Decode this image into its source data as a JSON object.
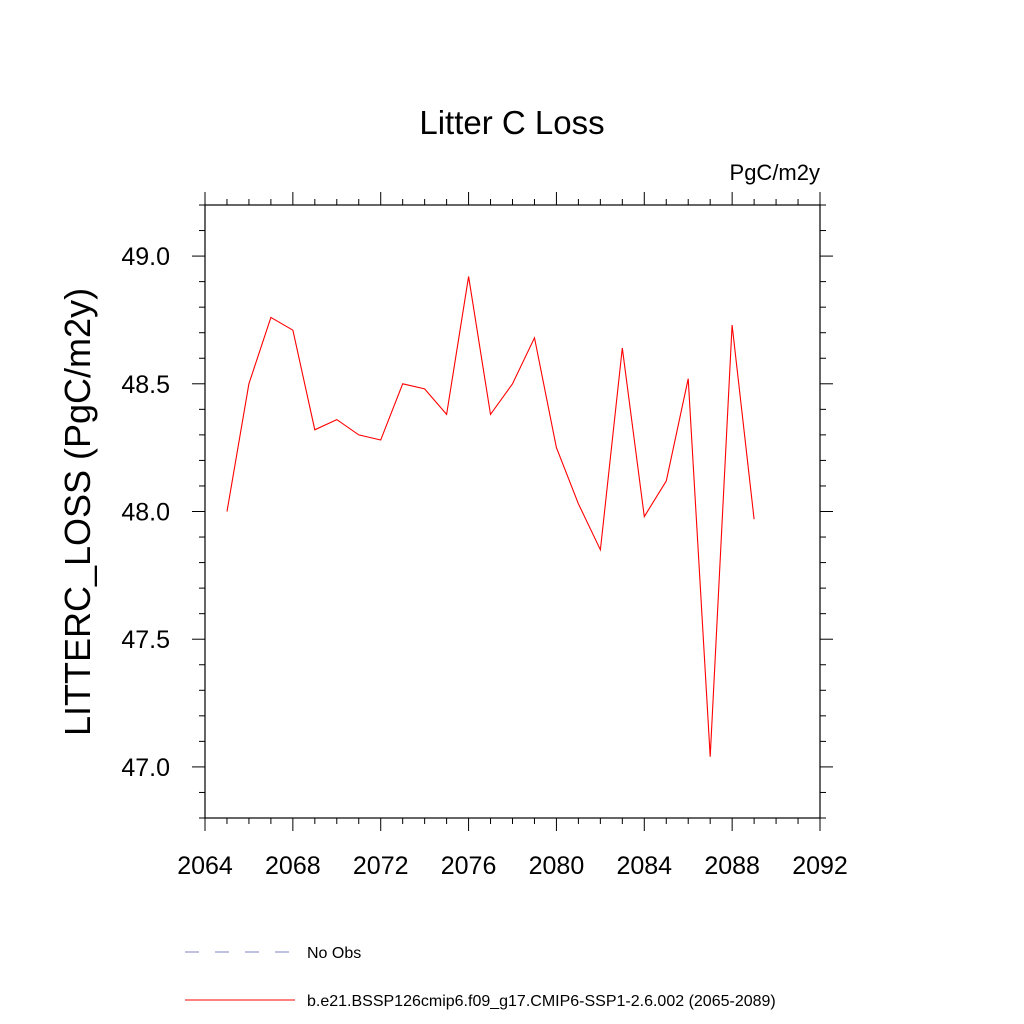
{
  "chart_data": {
    "type": "line",
    "title": "Litter C Loss",
    "units_label": "PgC/m2y",
    "xlabel": "",
    "ylabel": "LITTERC_LOSS  (PgC/m2y)",
    "xlim": [
      2064,
      2092
    ],
    "ylim": [
      46.8,
      49.2
    ],
    "x_ticks": [
      2064,
      2068,
      2072,
      2076,
      2080,
      2084,
      2088,
      2092
    ],
    "x_tick_labels": [
      "2064",
      "2068",
      "2072",
      "2076",
      "2080",
      "2084",
      "2088",
      "2092"
    ],
    "y_ticks": [
      47.0,
      47.5,
      48.0,
      48.5,
      49.0
    ],
    "y_tick_labels": [
      "47.0",
      "47.5",
      "48.0",
      "48.5",
      "49.0"
    ],
    "grid": false,
    "legend_position": "bottom",
    "series": [
      {
        "name": "b.e21.BSSP126cmip6.f09_g17.CMIP6-SSP1-2.6.002 (2065-2089)",
        "color": "#ff0000",
        "style": "solid",
        "x": [
          2065,
          2066,
          2067,
          2068,
          2069,
          2070,
          2071,
          2072,
          2073,
          2074,
          2075,
          2076,
          2077,
          2078,
          2079,
          2080,
          2081,
          2082,
          2083,
          2084,
          2085,
          2086,
          2087,
          2088,
          2089
        ],
        "y": [
          48.0,
          48.5,
          48.76,
          48.71,
          48.32,
          48.36,
          48.3,
          48.28,
          48.5,
          48.48,
          48.38,
          48.92,
          48.38,
          48.5,
          48.68,
          48.25,
          48.03,
          47.85,
          48.64,
          47.98,
          48.12,
          48.52,
          47.04,
          48.73,
          47.97
        ]
      }
    ],
    "legend": [
      {
        "label": "No Obs",
        "color": "#8080c0",
        "style": "dashed"
      },
      {
        "label": "b.e21.BSSP126cmip6.f09_g17.CMIP6-SSP1-2.6.002 (2065-2089)",
        "color": "#ff0000",
        "style": "solid"
      }
    ]
  }
}
